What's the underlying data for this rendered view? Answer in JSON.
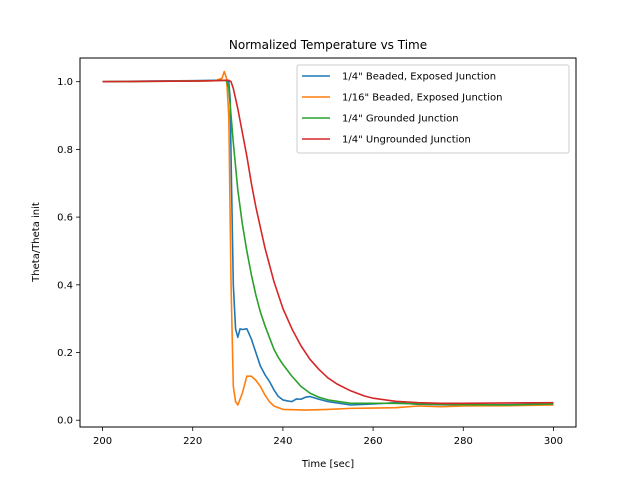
{
  "chart_data": {
    "type": "line",
    "title": "Normalized Temperature vs Time",
    "xlabel": "Time [sec]",
    "ylabel": "Theta/Theta init",
    "xlim": [
      195,
      305
    ],
    "ylim": [
      -0.02,
      1.07
    ],
    "xticks": [
      200,
      220,
      240,
      260,
      280,
      300
    ],
    "yticks": [
      0.0,
      0.2,
      0.4,
      0.6,
      0.8,
      1.0
    ],
    "xtick_labels": [
      "200",
      "220",
      "240",
      "260",
      "280",
      "300"
    ],
    "ytick_labels": [
      "0.0",
      "0.2",
      "0.4",
      "0.6",
      "0.8",
      "1.0"
    ],
    "grid": false,
    "legend_position": "top-right",
    "series": [
      {
        "name": "1/4\" Beaded, Exposed Junction",
        "color": "#1f77b4",
        "x": [
          200,
          210,
          220,
          225,
          227,
          228,
          228.3,
          228.6,
          229,
          229.5,
          230,
          230.5,
          231,
          232,
          233,
          234,
          235,
          236,
          237,
          238,
          239,
          240,
          241,
          242,
          243,
          244,
          245,
          246,
          248,
          250,
          255,
          260,
          265,
          270,
          280,
          290,
          300
        ],
        "y": [
          1.0,
          1.002,
          1.003,
          1.004,
          1.004,
          1.0,
          0.95,
          0.7,
          0.4,
          0.27,
          0.245,
          0.27,
          0.268,
          0.27,
          0.24,
          0.2,
          0.16,
          0.135,
          0.115,
          0.09,
          0.07,
          0.06,
          0.057,
          0.055,
          0.063,
          0.062,
          0.068,
          0.07,
          0.062,
          0.055,
          0.045,
          0.048,
          0.052,
          0.047,
          0.045,
          0.046,
          0.048
        ]
      },
      {
        "name": "1/16\" Beaded, Exposed Junction",
        "color": "#ff7f0e",
        "x": [
          200,
          210,
          220,
          225,
          226.5,
          227,
          227.5,
          228,
          228.5,
          229,
          229.5,
          230,
          231,
          232,
          233,
          234,
          235,
          236,
          237,
          238,
          240,
          245,
          250,
          255,
          260,
          265,
          270,
          275,
          280,
          290,
          300
        ],
        "y": [
          1.0,
          1.001,
          1.002,
          1.003,
          1.01,
          1.03,
          1.01,
          0.9,
          0.4,
          0.1,
          0.055,
          0.045,
          0.08,
          0.13,
          0.13,
          0.118,
          0.1,
          0.075,
          0.055,
          0.042,
          0.032,
          0.03,
          0.032,
          0.035,
          0.036,
          0.037,
          0.042,
          0.04,
          0.042,
          0.043,
          0.045
        ]
      },
      {
        "name": "1/4\" Grounded Junction",
        "color": "#2ca02c",
        "x": [
          200,
          210,
          220,
          225,
          227,
          227.5,
          228,
          228.5,
          229,
          230,
          231,
          232,
          233,
          234,
          235,
          236,
          237,
          238,
          239,
          240,
          242,
          244,
          246,
          248,
          250,
          255,
          260,
          265,
          270,
          280,
          290,
          300
        ],
        "y": [
          1.0,
          1.001,
          1.002,
          1.003,
          1.004,
          1.003,
          0.98,
          0.9,
          0.82,
          0.68,
          0.58,
          0.5,
          0.43,
          0.37,
          0.32,
          0.28,
          0.245,
          0.21,
          0.185,
          0.165,
          0.13,
          0.1,
          0.08,
          0.068,
          0.06,
          0.05,
          0.05,
          0.05,
          0.048,
          0.046,
          0.045,
          0.048
        ]
      },
      {
        "name": "1/4\" Ungrounded Junction",
        "color": "#d62728",
        "x": [
          200,
          210,
          220,
          225,
          227,
          228,
          228.5,
          229,
          230,
          231,
          232,
          233,
          234,
          235,
          236,
          237,
          238,
          240,
          242,
          244,
          246,
          248,
          250,
          252,
          255,
          258,
          260,
          265,
          270,
          275,
          280,
          290,
          300
        ],
        "y": [
          1.0,
          1.001,
          1.002,
          1.003,
          1.004,
          1.004,
          1.0,
          0.98,
          0.92,
          0.85,
          0.78,
          0.7,
          0.63,
          0.57,
          0.51,
          0.46,
          0.41,
          0.33,
          0.27,
          0.22,
          0.18,
          0.15,
          0.125,
          0.107,
          0.087,
          0.072,
          0.065,
          0.056,
          0.052,
          0.05,
          0.05,
          0.051,
          0.052
        ]
      }
    ]
  }
}
